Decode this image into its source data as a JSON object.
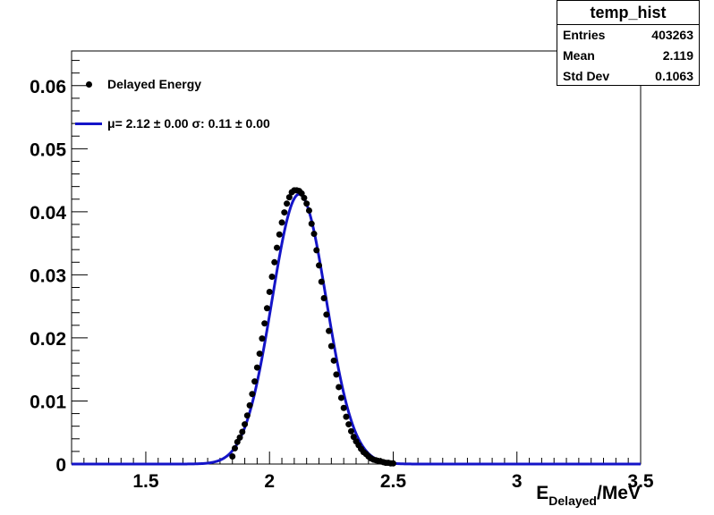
{
  "stats": {
    "title": "temp_hist",
    "rows": [
      {
        "label": "Entries",
        "value": "403263"
      },
      {
        "label": "Mean",
        "value": "2.119"
      },
      {
        "label": "Std Dev",
        "value": "0.1063"
      }
    ]
  },
  "legend": {
    "data_label": "Delayed Energy",
    "fit_label": "μ= 2.12 ± 0.00 σ: 0.11 ± 0.00"
  },
  "colors": {
    "fit": "#1414c8",
    "points": "#000000"
  },
  "chart_data": {
    "type": "scatter",
    "title": "",
    "xlabel_main": "E",
    "xlabel_sub": "Delayed",
    "xlabel_tail": "/MeV",
    "ylabel": "",
    "xlim": [
      1.2,
      3.5
    ],
    "ylim": [
      0,
      0.0655
    ],
    "x_ticks": [
      1.5,
      2,
      2.5,
      3,
      3.5
    ],
    "x_tick_labels": [
      "1.5",
      "2",
      "2.5",
      "3",
      "3.5"
    ],
    "y_ticks": [
      0,
      0.01,
      0.02,
      0.03,
      0.04,
      0.05,
      0.06
    ],
    "y_tick_labels": [
      "0",
      "0.01",
      "0.02",
      "0.03",
      "0.04",
      "0.05",
      "0.06"
    ],
    "grid": false,
    "legend_position": "top-left",
    "series": [
      {
        "name": "Delayed Energy",
        "kind": "points",
        "x": [
          1.85,
          1.86,
          1.87,
          1.88,
          1.89,
          1.9,
          1.91,
          1.92,
          1.93,
          1.94,
          1.95,
          1.96,
          1.97,
          1.98,
          1.99,
          2.0,
          2.01,
          2.02,
          2.03,
          2.04,
          2.05,
          2.06,
          2.07,
          2.08,
          2.09,
          2.1,
          2.11,
          2.12,
          2.13,
          2.14,
          2.15,
          2.16,
          2.17,
          2.18,
          2.19,
          2.2,
          2.21,
          2.22,
          2.23,
          2.24,
          2.25,
          2.26,
          2.27,
          2.28,
          2.29,
          2.3,
          2.31,
          2.32,
          2.33,
          2.34,
          2.35,
          2.36,
          2.37,
          2.38,
          2.39,
          2.4,
          2.41,
          2.42,
          2.43,
          2.44,
          2.45,
          2.46,
          2.47,
          2.48,
          2.49,
          2.5
        ],
        "y": [
          0.0012,
          0.0025,
          0.0035,
          0.0042,
          0.0051,
          0.0063,
          0.0077,
          0.0093,
          0.0111,
          0.0131,
          0.0153,
          0.0175,
          0.0199,
          0.0223,
          0.0247,
          0.0273,
          0.0297,
          0.032,
          0.0343,
          0.0364,
          0.0383,
          0.0399,
          0.0413,
          0.0423,
          0.0431,
          0.0434,
          0.0434,
          0.0433,
          0.0429,
          0.0422,
          0.0413,
          0.0402,
          0.0381,
          0.0365,
          0.0339,
          0.0315,
          0.0289,
          0.0263,
          0.0237,
          0.0211,
          0.0187,
          0.0164,
          0.0142,
          0.0122,
          0.0105,
          0.0089,
          0.0075,
          0.0063,
          0.0052,
          0.0043,
          0.0036,
          0.003,
          0.0024,
          0.0019,
          0.0016,
          0.0012,
          0.0009,
          0.0007,
          0.0006,
          0.0005,
          0.0004,
          0.0003,
          0.0002,
          0.0002,
          0.0001,
          0.0001
        ]
      },
      {
        "name": "μ= 2.12 ± 0.00 σ: 0.11 ± 0.00",
        "kind": "gaussian-fit",
        "mean": 2.12,
        "sigma": 0.11,
        "amplitude": 0.0428
      }
    ]
  }
}
